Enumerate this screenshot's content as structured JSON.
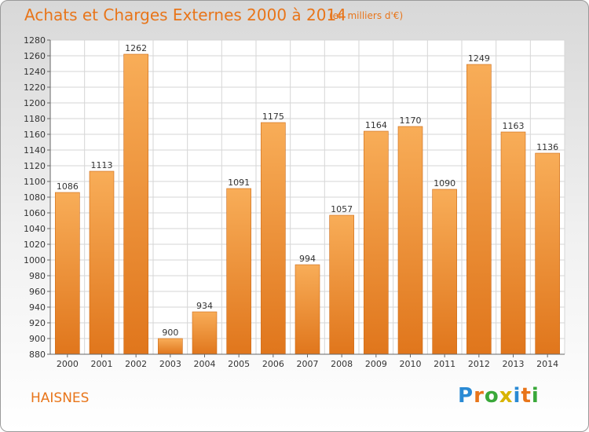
{
  "title": "Achats et Charges Externes 2000 à 2014",
  "subtitle": "(en milliers d'€)",
  "city": "HAISNES",
  "brand": {
    "letters": [
      "P",
      "r",
      "o",
      "x",
      "i",
      "t",
      "i"
    ],
    "colors": [
      "#2a8ad4",
      "#e8751a",
      "#3aa83a",
      "#d8b400",
      "#2a8ad4",
      "#e8751a",
      "#3aa83a"
    ]
  },
  "colors": {
    "bar_top": "#f8ad58",
    "bar_bottom": "#e0761c",
    "bar_edge": "#cc6a16",
    "title": "#e8751a"
  },
  "chart_data": {
    "type": "bar",
    "categories": [
      "2000",
      "2001",
      "2002",
      "2003",
      "2004",
      "2005",
      "2006",
      "2007",
      "2008",
      "2009",
      "2010",
      "2011",
      "2012",
      "2013",
      "2014"
    ],
    "values": [
      1086,
      1113,
      1262,
      900,
      934,
      1091,
      1175,
      994,
      1057,
      1164,
      1170,
      1090,
      1249,
      1163,
      1136
    ],
    "ylim": [
      880,
      1280
    ],
    "ytick_step": 20,
    "grid": true
  }
}
